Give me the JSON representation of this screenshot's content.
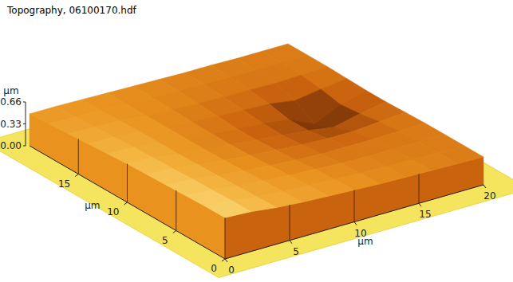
{
  "chart_data": {
    "type": "surface",
    "title": "Topography, 06100170.hdf",
    "x_label": "µm",
    "y_label": "µm",
    "z_label": "µm",
    "xlim": [
      0,
      20
    ],
    "ylim": [
      0,
      20
    ],
    "zlim": [
      0,
      0.66
    ],
    "xticks": [
      0,
      5,
      10,
      15,
      20
    ],
    "yticks": [
      0,
      5,
      10,
      15
    ],
    "zticks": [
      {
        "value": 0,
        "label": "0.00"
      },
      0.33,
      0.66
    ],
    "x": [
      0,
      2,
      4,
      6,
      8,
      10,
      12,
      14,
      16,
      18,
      20
    ],
    "y": [
      0,
      2,
      4,
      6,
      8,
      10,
      12,
      14,
      16,
      18,
      20
    ],
    "z": [
      [
        0.62,
        0.6,
        0.55,
        0.52,
        0.5,
        0.48,
        0.46,
        0.45,
        0.44,
        0.43,
        0.42
      ],
      [
        0.62,
        0.6,
        0.54,
        0.51,
        0.49,
        0.47,
        0.45,
        0.44,
        0.43,
        0.42,
        0.42
      ],
      [
        0.61,
        0.59,
        0.53,
        0.5,
        0.47,
        0.45,
        0.43,
        0.42,
        0.42,
        0.42,
        0.42
      ],
      [
        0.6,
        0.58,
        0.52,
        0.48,
        0.45,
        0.42,
        0.4,
        0.4,
        0.4,
        0.41,
        0.42
      ],
      [
        0.59,
        0.57,
        0.51,
        0.47,
        0.43,
        0.4,
        0.37,
        0.35,
        0.35,
        0.38,
        0.41
      ],
      [
        0.58,
        0.56,
        0.5,
        0.46,
        0.42,
        0.38,
        0.34,
        0.3,
        0.24,
        0.33,
        0.4
      ],
      [
        0.56,
        0.55,
        0.5,
        0.46,
        0.42,
        0.38,
        0.35,
        0.3,
        0.12,
        0.3,
        0.4
      ],
      [
        0.54,
        0.53,
        0.5,
        0.46,
        0.43,
        0.4,
        0.38,
        0.36,
        0.3,
        0.36,
        0.41
      ],
      [
        0.52,
        0.51,
        0.49,
        0.46,
        0.44,
        0.42,
        0.41,
        0.4,
        0.39,
        0.4,
        0.42
      ],
      [
        0.5,
        0.49,
        0.48,
        0.46,
        0.45,
        0.44,
        0.43,
        0.42,
        0.42,
        0.42,
        0.42
      ],
      [
        0.48,
        0.48,
        0.47,
        0.46,
        0.45,
        0.44,
        0.43,
        0.43,
        0.42,
        0.42,
        0.42
      ]
    ]
  }
}
